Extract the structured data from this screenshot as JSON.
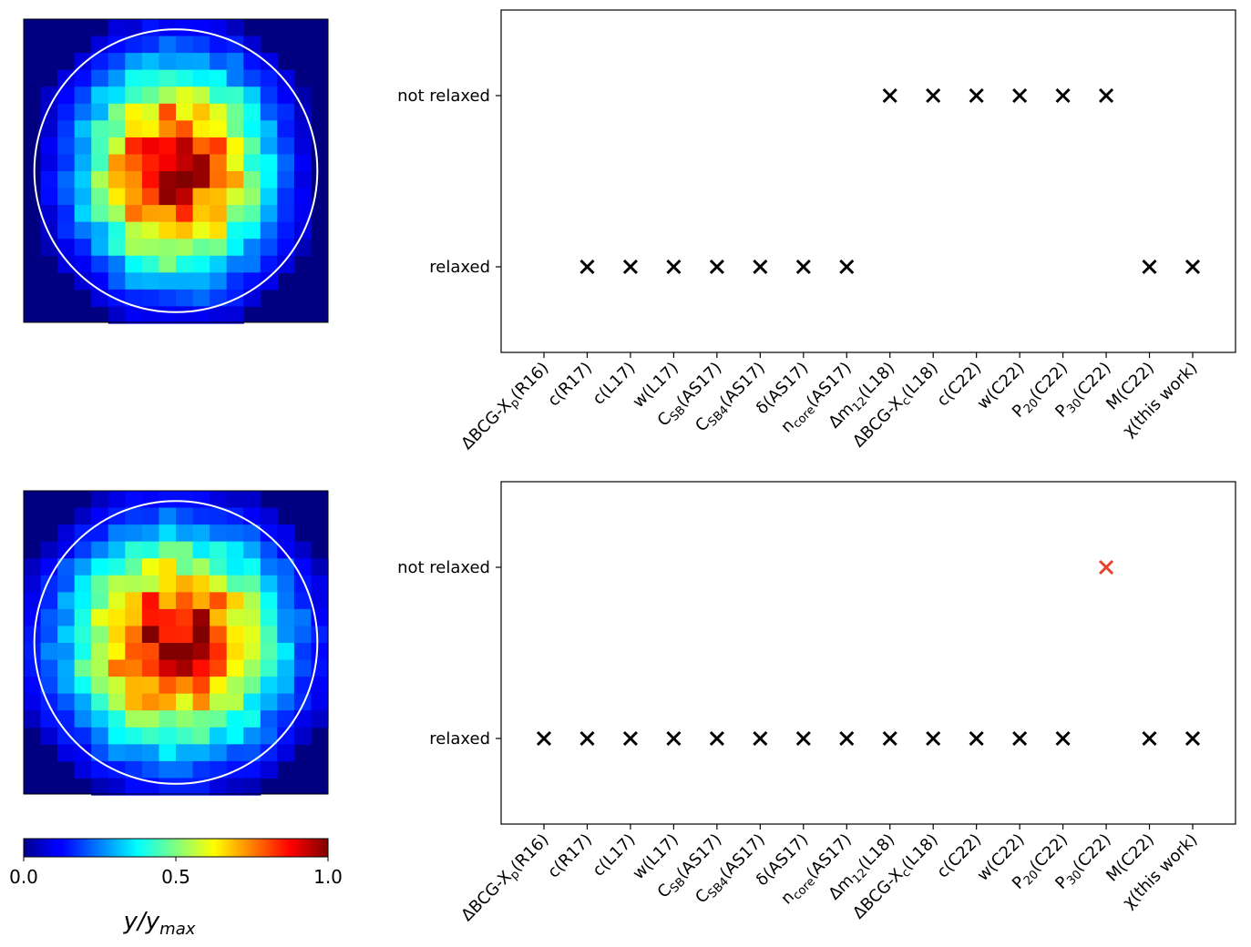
{
  "chart_data": [
    {
      "type": "heatmap",
      "title": "",
      "grid_size": 18,
      "value_range": [
        0,
        1
      ],
      "colormap": "jet",
      "overlay": "circle"
    },
    {
      "type": "scatter",
      "title": "",
      "xlabel": "",
      "ylabel": "",
      "categories": [
        "ΔBCG-X_p(R16)",
        "c(R17)",
        "c(L17)",
        "w(L17)",
        "C_SB(AS17)",
        "C_SB4(AS17)",
        "δ(AS17)",
        "n_core(AS17)",
        "Δm_12(L18)",
        "ΔBCG-X_c(L18)",
        "c(C22)",
        "w(C22)",
        "P_20(C22)",
        "P_30(C22)",
        "M(C22)",
        "χ(this work)"
      ],
      "y_categories": [
        "relaxed",
        "not relaxed"
      ],
      "marker": "x",
      "points": [
        {
          "x": "c(R17)",
          "y": "relaxed"
        },
        {
          "x": "c(L17)",
          "y": "relaxed"
        },
        {
          "x": "w(L17)",
          "y": "relaxed"
        },
        {
          "x": "C_SB(AS17)",
          "y": "relaxed"
        },
        {
          "x": "C_SB4(AS17)",
          "y": "relaxed"
        },
        {
          "x": "δ(AS17)",
          "y": "relaxed"
        },
        {
          "x": "n_core(AS17)",
          "y": "relaxed"
        },
        {
          "x": "Δm_12(L18)",
          "y": "not relaxed"
        },
        {
          "x": "ΔBCG-X_c(L18)",
          "y": "not relaxed"
        },
        {
          "x": "c(C22)",
          "y": "not relaxed"
        },
        {
          "x": "w(C22)",
          "y": "not relaxed"
        },
        {
          "x": "P_20(C22)",
          "y": "not relaxed"
        },
        {
          "x": "P_30(C22)",
          "y": "not relaxed"
        },
        {
          "x": "M(C22)",
          "y": "relaxed"
        },
        {
          "x": "χ(this work)",
          "y": "relaxed"
        }
      ],
      "grid": false
    },
    {
      "type": "heatmap",
      "title": "",
      "grid_size": 18,
      "value_range": [
        0,
        1
      ],
      "colormap": "jet",
      "overlay": "circle"
    },
    {
      "type": "scatter",
      "title": "",
      "xlabel": "",
      "ylabel": "",
      "categories": [
        "ΔBCG-X_p(R16)",
        "c(R17)",
        "c(L17)",
        "w(L17)",
        "C_SB(AS17)",
        "C_SB4(AS17)",
        "δ(AS17)",
        "n_core(AS17)",
        "Δm_12(L18)",
        "ΔBCG-X_c(L18)",
        "c(C22)",
        "w(C22)",
        "P_20(C22)",
        "P_30(C22)",
        "M(C22)",
        "χ(this work)"
      ],
      "y_categories": [
        "relaxed",
        "not relaxed"
      ],
      "marker": "x",
      "points": [
        {
          "x": "ΔBCG-X_p(R16)",
          "y": "relaxed"
        },
        {
          "x": "c(R17)",
          "y": "relaxed"
        },
        {
          "x": "c(L17)",
          "y": "relaxed"
        },
        {
          "x": "w(L17)",
          "y": "relaxed"
        },
        {
          "x": "C_SB(AS17)",
          "y": "relaxed"
        },
        {
          "x": "C_SB4(AS17)",
          "y": "relaxed"
        },
        {
          "x": "δ(AS17)",
          "y": "relaxed"
        },
        {
          "x": "n_core(AS17)",
          "y": "relaxed"
        },
        {
          "x": "Δm_12(L18)",
          "y": "relaxed"
        },
        {
          "x": "ΔBCG-X_c(L18)",
          "y": "relaxed"
        },
        {
          "x": "c(C22)",
          "y": "relaxed"
        },
        {
          "x": "w(C22)",
          "y": "relaxed"
        },
        {
          "x": "P_20(C22)",
          "y": "relaxed"
        },
        {
          "x": "P_30(C22)",
          "y": "not relaxed",
          "color": "#e8402a"
        },
        {
          "x": "M(C22)",
          "y": "relaxed"
        },
        {
          "x": "χ(this work)",
          "y": "relaxed"
        }
      ],
      "grid": false
    }
  ],
  "colorbar": {
    "colormap": "jet",
    "range": [
      0,
      1
    ],
    "ticks": [
      "0.0",
      "0.5",
      "1.0"
    ],
    "title": "y/y_max"
  },
  "colors": {
    "marker": "#000000",
    "highlight": "#e8402a",
    "circle": "#ffffff",
    "background": "#00008f"
  }
}
